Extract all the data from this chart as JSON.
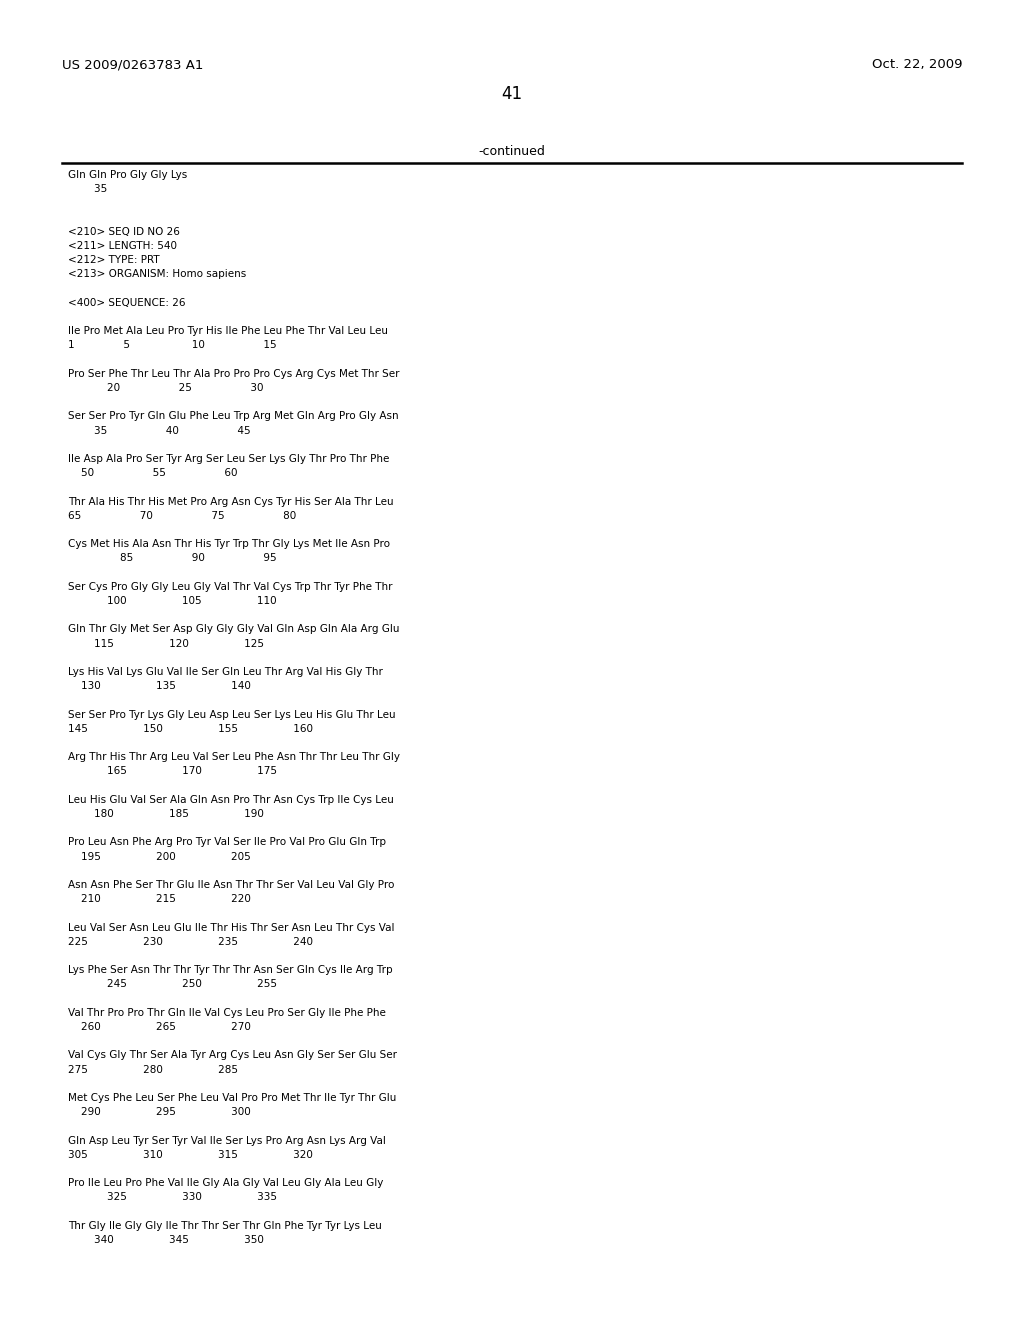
{
  "header_left": "US 2009/0263783 A1",
  "header_right": "Oct. 22, 2009",
  "page_number": "41",
  "continued_text": "-continued",
  "background_color": "#ffffff",
  "text_color": "#000000",
  "lines": [
    "Gln Gln Pro Gly Gly Lys",
    "        35",
    "",
    "",
    "<210> SEQ ID NO 26",
    "<211> LENGTH: 540",
    "<212> TYPE: PRT",
    "<213> ORGANISM: Homo sapiens",
    "",
    "<400> SEQUENCE: 26",
    "",
    "Ile Pro Met Ala Leu Pro Tyr His Ile Phe Leu Phe Thr Val Leu Leu",
    "1               5                   10                  15",
    "",
    "Pro Ser Phe Thr Leu Thr Ala Pro Pro Pro Cys Arg Cys Met Thr Ser",
    "            20                  25                  30",
    "",
    "Ser Ser Pro Tyr Gln Glu Phe Leu Trp Arg Met Gln Arg Pro Gly Asn",
    "        35                  40                  45",
    "",
    "Ile Asp Ala Pro Ser Tyr Arg Ser Leu Ser Lys Gly Thr Pro Thr Phe",
    "    50                  55                  60",
    "",
    "Thr Ala His Thr His Met Pro Arg Asn Cys Tyr His Ser Ala Thr Leu",
    "65                  70                  75                  80",
    "",
    "Cys Met His Ala Asn Thr His Tyr Trp Thr Gly Lys Met Ile Asn Pro",
    "                85                  90                  95",
    "",
    "Ser Cys Pro Gly Gly Leu Gly Val Thr Val Cys Trp Thr Tyr Phe Thr",
    "            100                 105                 110",
    "",
    "Gln Thr Gly Met Ser Asp Gly Gly Gly Val Gln Asp Gln Ala Arg Glu",
    "        115                 120                 125",
    "",
    "Lys His Val Lys Glu Val Ile Ser Gln Leu Thr Arg Val His Gly Thr",
    "    130                 135                 140",
    "",
    "Ser Ser Pro Tyr Lys Gly Leu Asp Leu Ser Lys Leu His Glu Thr Leu",
    "145                 150                 155                 160",
    "",
    "Arg Thr His Thr Arg Leu Val Ser Leu Phe Asn Thr Thr Leu Thr Gly",
    "            165                 170                 175",
    "",
    "Leu His Glu Val Ser Ala Gln Asn Pro Thr Asn Cys Trp Ile Cys Leu",
    "        180                 185                 190",
    "",
    "Pro Leu Asn Phe Arg Pro Tyr Val Ser Ile Pro Val Pro Glu Gln Trp",
    "    195                 200                 205",
    "",
    "Asn Asn Phe Ser Thr Glu Ile Asn Thr Thr Ser Val Leu Val Gly Pro",
    "    210                 215                 220",
    "",
    "Leu Val Ser Asn Leu Glu Ile Thr His Thr Ser Asn Leu Thr Cys Val",
    "225                 230                 235                 240",
    "",
    "Lys Phe Ser Asn Thr Thr Tyr Thr Thr Asn Ser Gln Cys Ile Arg Trp",
    "            245                 250                 255",
    "",
    "Val Thr Pro Pro Thr Gln Ile Val Cys Leu Pro Ser Gly Ile Phe Phe",
    "    260                 265                 270",
    "",
    "Val Cys Gly Thr Ser Ala Tyr Arg Cys Leu Asn Gly Ser Ser Glu Ser",
    "275                 280                 285",
    "",
    "Met Cys Phe Leu Ser Phe Leu Val Pro Pro Met Thr Ile Tyr Thr Glu",
    "    290                 295                 300",
    "",
    "Gln Asp Leu Tyr Ser Tyr Val Ile Ser Lys Pro Arg Asn Lys Arg Val",
    "305                 310                 315                 320",
    "",
    "Pro Ile Leu Pro Phe Val Ile Gly Ala Gly Val Leu Gly Ala Leu Gly",
    "            325                 330                 335",
    "",
    "Thr Gly Ile Gly Gly Ile Thr Thr Ser Thr Gln Phe Tyr Tyr Lys Leu",
    "        340                 345                 350"
  ]
}
